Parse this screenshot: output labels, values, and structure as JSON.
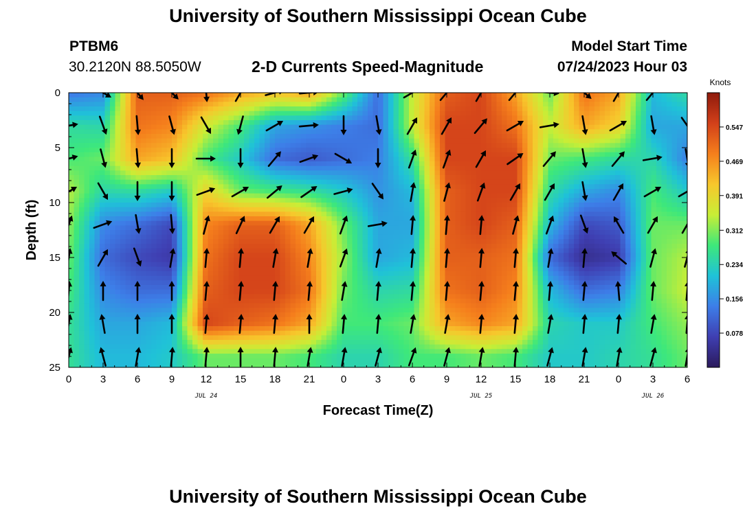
{
  "header": {
    "title": "University of Southern Mississippi Ocean Cube",
    "station_id": "PTBM6",
    "station_coords": "30.2120N  88.5050W",
    "subtitle": "2-D Currents Speed-Magnitude",
    "model_start_label": "Model Start Time",
    "model_start_value": "07/24/2023 Hour 03"
  },
  "footer": {
    "title": "University of Southern Mississippi Ocean Cube"
  },
  "chart_data": {
    "type": "heatmap",
    "title": "2-D Currents Speed-Magnitude",
    "xlabel": "Forecast Time(Z)",
    "ylabel": "Depth (ft)",
    "x_unit": "forecast hour from 07/24/2023 00Z",
    "xlim": [
      0,
      54
    ],
    "ylim": [
      0,
      25
    ],
    "y_inverted": true,
    "x_ticks": [
      0,
      3,
      6,
      9,
      12,
      15,
      18,
      21,
      24,
      27,
      30,
      33,
      36,
      39,
      42,
      45,
      48,
      51,
      54
    ],
    "x_tick_labels": [
      "0",
      "3",
      "6",
      "9",
      "12",
      "15",
      "18",
      "21",
      "0",
      "3",
      "6",
      "9",
      "12",
      "15",
      "18",
      "21",
      "0",
      "3",
      "6"
    ],
    "y_ticks": [
      0,
      5,
      10,
      15,
      20,
      25
    ],
    "y_tick_labels": [
      "0",
      "5",
      "10",
      "15",
      "20",
      "25"
    ],
    "date_labels": [
      {
        "x": 12,
        "label": "JUL 24"
      },
      {
        "x": 36,
        "label": "JUL 25"
      },
      {
        "x": 51,
        "label": "JUL 26"
      }
    ],
    "colorbar": {
      "unit": "Knots",
      "min": 0.0,
      "max": 0.625,
      "ticks": [
        0.078,
        0.156,
        0.234,
        0.312,
        0.391,
        0.469,
        0.547
      ],
      "tick_labels": [
        "0.078",
        "0.156",
        "0.234",
        "0.312",
        "0.391",
        "0.469",
        "0.547"
      ],
      "colors": [
        "#2b1a5c",
        "#3f3fb2",
        "#3d7ee8",
        "#1fc2d8",
        "#3ee87a",
        "#c8ee36",
        "#f7c72c",
        "#f57f1c",
        "#d2401a",
        "#8e1a0c"
      ]
    },
    "depth_levels": [
      0,
      3,
      6,
      9,
      12,
      15,
      18,
      21,
      24
    ],
    "columns": [
      {
        "t": 0,
        "speed": [
          0.13,
          0.25,
          0.28,
          0.34,
          0.32,
          0.3,
          0.28,
          0.26,
          0.26
        ],
        "dir": [
          null,
          80,
          75,
          60,
          20,
          10,
          5,
          10,
          15
        ]
      },
      {
        "t": 3,
        "speed": [
          0.15,
          0.24,
          0.3,
          0.24,
          0.15,
          0.12,
          0.15,
          0.18,
          0.2
        ],
        "dir": [
          120,
          160,
          165,
          150,
          70,
          30,
          0,
          350,
          345
        ]
      },
      {
        "t": 6,
        "speed": [
          0.52,
          0.5,
          0.45,
          0.25,
          0.12,
          0.08,
          0.12,
          0.18,
          0.2
        ],
        "dir": [
          140,
          175,
          175,
          180,
          170,
          160,
          0,
          0,
          10
        ]
      },
      {
        "t": 9,
        "speed": [
          0.52,
          0.48,
          0.42,
          0.22,
          0.08,
          0.06,
          0.12,
          0.2,
          0.22
        ],
        "dir": [
          135,
          165,
          180,
          180,
          175,
          10,
          0,
          0,
          5
        ]
      },
      {
        "t": 12,
        "speed": [
          0.5,
          0.36,
          0.28,
          0.4,
          0.48,
          0.5,
          0.52,
          0.55,
          0.3
        ],
        "dir": [
          175,
          150,
          90,
          70,
          15,
          5,
          5,
          5,
          5
        ]
      },
      {
        "t": 15,
        "speed": [
          0.45,
          0.28,
          0.22,
          0.3,
          0.52,
          0.55,
          0.55,
          0.52,
          0.3
        ],
        "dir": [
          30,
          195,
          180,
          60,
          25,
          5,
          5,
          5,
          0
        ]
      },
      {
        "t": 18,
        "speed": [
          0.42,
          0.18,
          0.12,
          0.28,
          0.52,
          0.55,
          0.55,
          0.5,
          0.3
        ],
        "dir": [
          75,
          60,
          40,
          50,
          30,
          10,
          5,
          5,
          5
        ]
      },
      {
        "t": 21,
        "speed": [
          0.45,
          0.16,
          0.1,
          0.26,
          0.45,
          0.48,
          0.5,
          0.45,
          0.28
        ],
        "dir": [
          85,
          85,
          70,
          55,
          30,
          10,
          5,
          0,
          10
        ]
      },
      {
        "t": 24,
        "speed": [
          0.3,
          0.14,
          0.12,
          0.22,
          0.3,
          0.32,
          0.3,
          0.28,
          0.24
        ],
        "dir": [
          null,
          180,
          120,
          75,
          20,
          20,
          10,
          5,
          10
        ]
      },
      {
        "t": 27,
        "speed": [
          0.12,
          0.12,
          0.14,
          0.16,
          0.18,
          0.18,
          0.24,
          0.28,
          0.24
        ],
        "dir": [
          null,
          170,
          180,
          145,
          80,
          10,
          5,
          5,
          15
        ]
      },
      {
        "t": 30,
        "speed": [
          0.35,
          0.35,
          0.26,
          0.2,
          0.18,
          0.2,
          0.25,
          0.3,
          0.28
        ],
        "dir": [
          60,
          30,
          20,
          10,
          5,
          5,
          5,
          10,
          20
        ]
      },
      {
        "t": 33,
        "speed": [
          0.52,
          0.55,
          0.55,
          0.52,
          0.52,
          0.52,
          0.5,
          0.45,
          0.28
        ],
        "dir": [
          40,
          30,
          20,
          15,
          5,
          5,
          5,
          10,
          15
        ]
      },
      {
        "t": 36,
        "speed": [
          0.55,
          0.55,
          0.55,
          0.55,
          0.55,
          0.52,
          0.52,
          0.48,
          0.3
        ],
        "dir": [
          30,
          40,
          30,
          20,
          5,
          5,
          5,
          5,
          10
        ]
      },
      {
        "t": 39,
        "speed": [
          0.45,
          0.5,
          0.55,
          0.55,
          0.52,
          0.5,
          0.48,
          0.45,
          0.28
        ],
        "dir": [
          40,
          60,
          55,
          30,
          15,
          5,
          5,
          5,
          5
        ]
      },
      {
        "t": 42,
        "speed": [
          0.3,
          0.35,
          0.3,
          0.25,
          0.2,
          0.12,
          0.2,
          0.24,
          0.22
        ],
        "dir": [
          95,
          80,
          40,
          30,
          20,
          10,
          5,
          10,
          15
        ]
      },
      {
        "t": 45,
        "speed": [
          0.5,
          0.45,
          0.28,
          0.18,
          0.08,
          0.04,
          0.12,
          0.22,
          0.22
        ],
        "dir": [
          130,
          170,
          170,
          170,
          160,
          5,
          5,
          5,
          10
        ]
      },
      {
        "t": 48,
        "speed": [
          0.45,
          0.4,
          0.25,
          0.15,
          0.1,
          0.06,
          0.14,
          0.22,
          0.24
        ],
        "dir": [
          30,
          60,
          40,
          30,
          330,
          310,
          355,
          5,
          10
        ]
      },
      {
        "t": 51,
        "speed": [
          0.2,
          0.18,
          0.24,
          0.28,
          0.3,
          0.3,
          0.3,
          0.28,
          0.26
        ],
        "dir": [
          40,
          170,
          80,
          60,
          30,
          15,
          5,
          10,
          15
        ]
      },
      {
        "t": 54,
        "speed": [
          0.25,
          0.18,
          0.14,
          0.22,
          0.3,
          0.34,
          0.35,
          0.32,
          0.3
        ],
        "dir": [
          null,
          145,
          170,
          60,
          30,
          15,
          5,
          5,
          10
        ]
      }
    ]
  }
}
